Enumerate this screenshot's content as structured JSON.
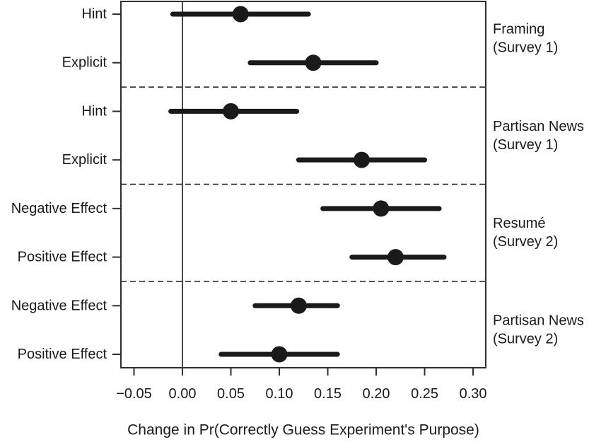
{
  "chart_data": {
    "type": "scatter",
    "subtype": "dot-whisker-forest-plot",
    "title": "",
    "xlabel": "Change in Pr(Correctly Guess Experiment's Purpose)",
    "ylabel": "",
    "xlim": [
      -0.0635,
      0.3131
    ],
    "x_ticks": [
      -0.05,
      0.0,
      0.05,
      0.1,
      0.15,
      0.2,
      0.25,
      0.3
    ],
    "x_tick_labels": [
      "−0.05",
      "0.00",
      "0.05",
      "0.10",
      "0.15",
      "0.20",
      "0.25",
      "0.30"
    ],
    "zero_line_x": 0,
    "grid": false,
    "legend": "none",
    "rows": [
      {
        "label": "Hint",
        "group": "Framing (Survey 1)",
        "estimate": 0.06,
        "ci_low": -0.01,
        "ci_high": 0.13
      },
      {
        "label": "Explicit",
        "group": "Framing (Survey 1)",
        "estimate": 0.135,
        "ci_low": 0.07,
        "ci_high": 0.2
      },
      {
        "label": "Hint",
        "group": "Partisan News (Survey 1)",
        "estimate": 0.05,
        "ci_low": -0.012,
        "ci_high": 0.118
      },
      {
        "label": "Explicit",
        "group": "Partisan News (Survey 1)",
        "estimate": 0.185,
        "ci_low": 0.12,
        "ci_high": 0.25
      },
      {
        "label": "Negative Effect",
        "group": "Resumé (Survey 2)",
        "estimate": 0.205,
        "ci_low": 0.145,
        "ci_high": 0.265
      },
      {
        "label": "Positive Effect",
        "group": "Resumé (Survey 2)",
        "estimate": 0.22,
        "ci_low": 0.175,
        "ci_high": 0.27
      },
      {
        "label": "Negative Effect",
        "group": "Partisan News (Survey 2)",
        "estimate": 0.12,
        "ci_low": 0.075,
        "ci_high": 0.16
      },
      {
        "label": "Positive Effect",
        "group": "Partisan News (Survey 2)",
        "estimate": 0.1,
        "ci_low": 0.04,
        "ci_high": 0.16
      }
    ],
    "groups": [
      {
        "label_line1": "Framing",
        "label_line2": "(Survey 1)",
        "rows": [
          0,
          1
        ]
      },
      {
        "label_line1": "Partisan News",
        "label_line2": "(Survey 1)",
        "rows": [
          2,
          3
        ]
      },
      {
        "label_line1": "Resumé",
        "label_line2": "(Survey 2)",
        "rows": [
          4,
          5
        ]
      },
      {
        "label_line1": "Partisan News",
        "label_line2": "(Survey 2)",
        "rows": [
          6,
          7
        ]
      }
    ],
    "colors": {
      "point": "#1a1a1a",
      "line": "#1a1a1a",
      "text": "#1a1a1a",
      "box": "#2f2f2f",
      "background": "#ffffff"
    }
  }
}
